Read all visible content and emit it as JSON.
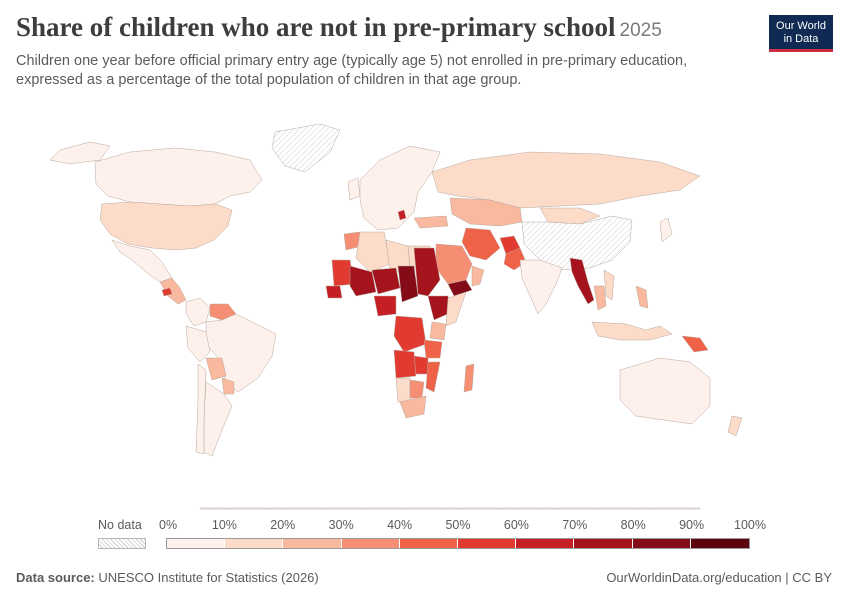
{
  "header": {
    "title": "Share of children who are not in pre-primary school",
    "year": "2025",
    "subtitle": "Children one year before official primary entry age (typically age 5) not enrolled in pre-primary education, expressed as a percentage of the total population of children in that age group."
  },
  "logo": {
    "line1": "Our World",
    "line2": "in Data",
    "bg": "#102a53",
    "accent": "#cc2f3f"
  },
  "legend": {
    "no_data_label": "No data",
    "ticks": [
      "0%",
      "10%",
      "20%",
      "30%",
      "40%",
      "50%",
      "60%",
      "70%",
      "80%",
      "90%",
      "100%"
    ],
    "colors": [
      "#fef1eb",
      "#fcdbc9",
      "#f9b99e",
      "#f58e73",
      "#ef6248",
      "#e13a30",
      "#c51f25",
      "#a5131d",
      "#830c18",
      "#5c0510"
    ]
  },
  "footer": {
    "source_label": "Data source:",
    "source_value": "UNESCO Institute for Statistics (2026)",
    "credit": "OurWorldinData.org/education | CC BY"
  },
  "map_data": {
    "type": "choropleth",
    "unit": "%",
    "regions": [
      {
        "name": "Canada",
        "value": 5
      },
      {
        "name": "United States",
        "value": 15
      },
      {
        "name": "Mexico",
        "value": 5
      },
      {
        "name": "Central America",
        "value": 25
      },
      {
        "name": "Honduras",
        "value": 55
      },
      {
        "name": "Venezuela",
        "value": 35
      },
      {
        "name": "Colombia",
        "value": 8
      },
      {
        "name": "Brazil",
        "value": 5
      },
      {
        "name": "Peru",
        "value": 5
      },
      {
        "name": "Bolivia",
        "value": 25
      },
      {
        "name": "Paraguay",
        "value": 25
      },
      {
        "name": "Argentina",
        "value": 5
      },
      {
        "name": "Chile",
        "value": 5
      },
      {
        "name": "Russia",
        "value": 10
      },
      {
        "name": "Kazakhstan",
        "value": 25
      },
      {
        "name": "Mongolia",
        "value": 15
      },
      {
        "name": "Western Europe",
        "value": 5
      },
      {
        "name": "Algeria",
        "value": 15
      },
      {
        "name": "Morocco",
        "value": 30
      },
      {
        "name": "Mauritania",
        "value": 55
      },
      {
        "name": "Mali",
        "value": 70
      },
      {
        "name": "Niger",
        "value": 75
      },
      {
        "name": "Chad",
        "value": 80
      },
      {
        "name": "Sudan",
        "value": 70
      },
      {
        "name": "Libya",
        "value": 15
      },
      {
        "name": "Egypt",
        "value": 15
      },
      {
        "name": "Senegal",
        "value": 60
      },
      {
        "name": "Nigeria",
        "value": 65
      },
      {
        "name": "Ethiopia",
        "value": 70
      },
      {
        "name": "Somalia",
        "value": 15
      },
      {
        "name": "DR Congo",
        "value": 50
      },
      {
        "name": "Angola",
        "value": 50
      },
      {
        "name": "Zambia",
        "value": 55
      },
      {
        "name": "Tanzania",
        "value": 45
      },
      {
        "name": "Kenya",
        "value": 25
      },
      {
        "name": "Mozambique",
        "value": 45
      },
      {
        "name": "Madagascar",
        "value": 35
      },
      {
        "name": "Namibia",
        "value": 10
      },
      {
        "name": "Botswana",
        "value": 35
      },
      {
        "name": "South Africa",
        "value": 25
      },
      {
        "name": "Saudi Arabia",
        "value": 35
      },
      {
        "name": "Yemen",
        "value": 85
      },
      {
        "name": "Oman",
        "value": 25
      },
      {
        "name": "Iran",
        "value": 45
      },
      {
        "name": "Afghanistan",
        "value": 50
      },
      {
        "name": "Pakistan",
        "value": 40
      },
      {
        "name": "India",
        "value": 5
      },
      {
        "name": "Myanmar",
        "value": 75
      },
      {
        "name": "Thailand",
        "value": 25
      },
      {
        "name": "Indonesia",
        "value": 15
      },
      {
        "name": "Papua New Guinea",
        "value": 45
      },
      {
        "name": "Philippines",
        "value": 20
      },
      {
        "name": "Australia",
        "value": 5
      },
      {
        "name": "New Zealand",
        "value": 15
      }
    ]
  }
}
